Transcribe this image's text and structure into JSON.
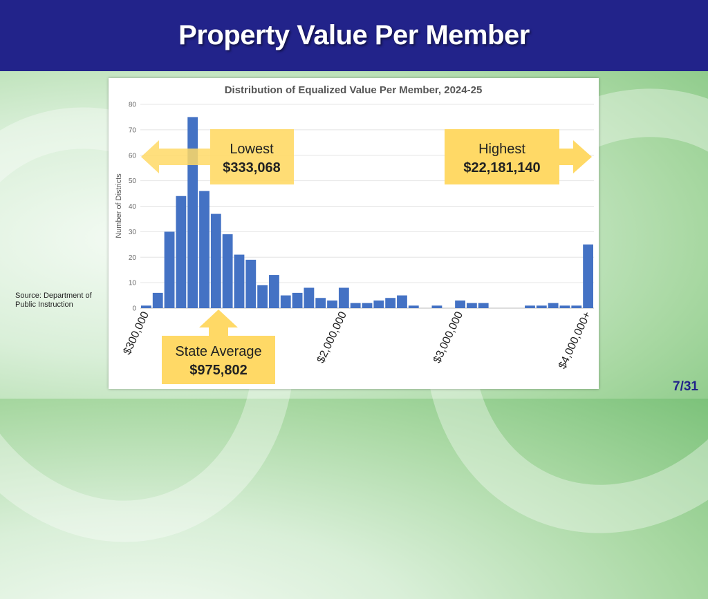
{
  "slide": {
    "title": "Property Value Per Member",
    "source": "Source: Department of Public Instruction",
    "page_number": "7/31"
  },
  "colors": {
    "header": "#22238a",
    "bar": "#4472c4",
    "callout": "#ffd966"
  },
  "callouts": {
    "lowest": {
      "label": "Lowest",
      "value": "$333,068"
    },
    "highest": {
      "label": "Highest",
      "value": "$22,181,140"
    },
    "average": {
      "label": "State Average",
      "value": "$975,802"
    }
  },
  "chart_data": {
    "type": "bar",
    "title": "Distribution of Equalized Value Per Member, 2024-25",
    "ylabel": "Number of Districts",
    "xlabel": "",
    "ylim": [
      0,
      80
    ],
    "yticks": [
      0,
      10,
      20,
      30,
      40,
      50,
      60,
      70,
      80
    ],
    "grid": true,
    "xtick_labels": [
      {
        "label": "$300,000",
        "bin": 0
      },
      {
        "label": "$2,000,000",
        "bin": 17
      },
      {
        "label": "$3,000,000",
        "bin": 27
      },
      {
        "label": "$4,000,000+",
        "bin": 38
      }
    ],
    "values": [
      1,
      6,
      30,
      44,
      75,
      46,
      37,
      29,
      21,
      19,
      9,
      13,
      5,
      6,
      8,
      4,
      3,
      8,
      2,
      2,
      3,
      4,
      5,
      1,
      0,
      1,
      0,
      3,
      2,
      2,
      0,
      0,
      0,
      1,
      1,
      2,
      1,
      1,
      25
    ]
  }
}
